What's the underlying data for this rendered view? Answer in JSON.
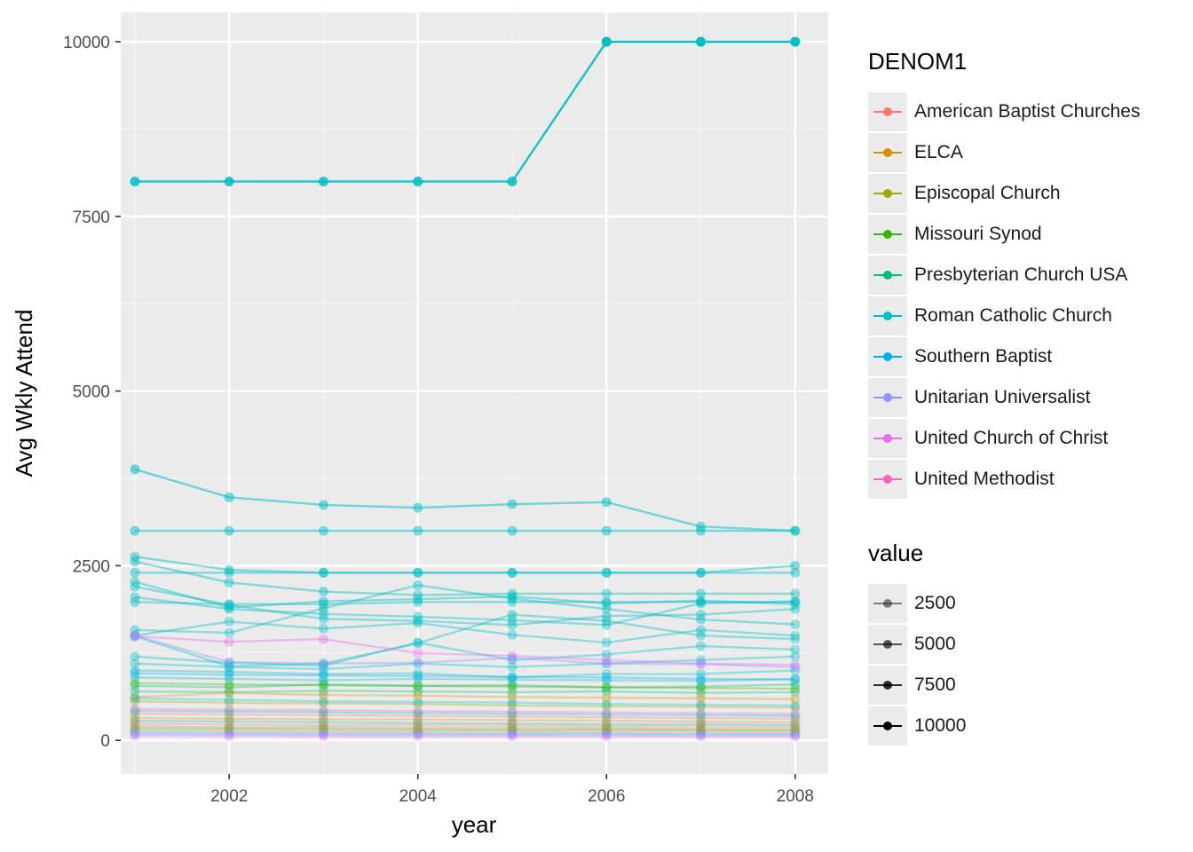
{
  "chart_data": {
    "type": "line",
    "xlabel": "year",
    "ylabel": "Avg Wkly Attend",
    "xlim": [
      2000.85,
      2008.35
    ],
    "ylim": [
      -480,
      10420
    ],
    "x_ticks": [
      2002,
      2004,
      2006,
      2008
    ],
    "x_tick_labels": [
      "2002",
      "2004",
      "2006",
      "2008"
    ],
    "y_ticks": [
      0,
      2500,
      5000,
      7500,
      10000
    ],
    "y_tick_labels": [
      "0",
      "2500",
      "5000",
      "7500",
      "10000"
    ],
    "grid": true,
    "x": [
      2001,
      2002,
      2003,
      2004,
      2005,
      2006,
      2007,
      2008
    ],
    "color_legend": {
      "title": "DENOM1",
      "placement": "right",
      "entries": [
        {
          "name": "American Baptist Churches",
          "color": "#F8766D"
        },
        {
          "name": "ELCA",
          "color": "#D89000"
        },
        {
          "name": "Episcopal Church",
          "color": "#A3A500"
        },
        {
          "name": "Missouri Synod",
          "color": "#39B600"
        },
        {
          "name": "Presbyterian Church USA",
          "color": "#00BF7D"
        },
        {
          "name": "Roman Catholic Church",
          "color": "#00BFC4"
        },
        {
          "name": "Southern Baptist",
          "color": "#00B0F6"
        },
        {
          "name": "Unitarian Universalist",
          "color": "#9590FF"
        },
        {
          "name": "United Church of Christ",
          "color": "#E76BF3"
        },
        {
          "name": "United Methodist",
          "color": "#FF62BC"
        }
      ]
    },
    "alpha_legend": {
      "title": "value",
      "placement": "right",
      "entries": [
        {
          "label": "2500",
          "value": 2500
        },
        {
          "label": "5000",
          "value": 5000
        },
        {
          "label": "7500",
          "value": 7500
        },
        {
          "label": "10000",
          "value": 10000
        }
      ]
    },
    "series": [
      {
        "denom": "Roman Catholic Church",
        "values": [
          8000,
          8000,
          8000,
          8000,
          8000,
          10000,
          10000,
          10000
        ]
      },
      {
        "denom": "Roman Catholic Church",
        "values": [
          3880,
          3480,
          3370,
          3330,
          3380,
          3410,
          3060,
          3000
        ]
      },
      {
        "denom": "Roman Catholic Church",
        "values": [
          3000,
          3000,
          3000,
          3000,
          3000,
          3000,
          3000,
          3000
        ]
      },
      {
        "denom": "Roman Catholic Church",
        "values": [
          2630,
          2440,
          2400,
          2400,
          2400,
          2400,
          2400,
          2500
        ]
      },
      {
        "denom": "Roman Catholic Church",
        "values": [
          2400,
          2400,
          2400,
          2400,
          2400,
          2400,
          2400,
          2400
        ]
      },
      {
        "denom": "Roman Catholic Church",
        "values": [
          2560,
          2260,
          2130,
          2080,
          2100,
          2100,
          2100,
          2100
        ]
      },
      {
        "denom": "Roman Catholic Church",
        "values": [
          2270,
          1900,
          1990,
          2020,
          2060,
          1960,
          2000,
          1950
        ]
      },
      {
        "denom": "Roman Catholic Church",
        "values": [
          2200,
          1940,
          1740,
          1710,
          1650,
          1780,
          1800,
          1880
        ]
      },
      {
        "denom": "Roman Catholic Church",
        "values": [
          2050,
          1880,
          1810,
          1770,
          1720,
          1650,
          1960,
          1990
        ]
      },
      {
        "denom": "Roman Catholic Church",
        "values": [
          1980,
          1950,
          1950,
          1980,
          1980,
          1980,
          1980,
          1980
        ]
      },
      {
        "denom": "Roman Catholic Church",
        "values": [
          1580,
          1540,
          1890,
          2220,
          2030,
          1880,
          1730,
          1660
        ]
      },
      {
        "denom": "Roman Catholic Church",
        "values": [
          1500,
          1700,
          1600,
          1680,
          1510,
          1400,
          1580,
          1500
        ]
      },
      {
        "denom": "Roman Catholic Church",
        "values": [
          1490,
          1060,
          1100,
          1390,
          1800,
          1710,
          1500,
          1450
        ]
      },
      {
        "denom": "Roman Catholic Church",
        "values": [
          1200,
          1110,
          1070,
          1400,
          1150,
          1230,
          1350,
          1300
        ]
      },
      {
        "denom": "Roman Catholic Church",
        "values": [
          1100,
          1050,
          1020,
          1100,
          1050,
          1100,
          1150,
          1200
        ]
      },
      {
        "denom": "Roman Catholic Church",
        "values": [
          1000,
          980,
          950,
          960,
          900,
          950,
          950,
          1000
        ]
      },
      {
        "denom": "Roman Catholic Church",
        "values": [
          900,
          880,
          860,
          880,
          870,
          860,
          850,
          880
        ]
      },
      {
        "denom": "Presbyterian Church USA",
        "values": [
          780,
          760,
          800,
          780,
          790,
          760,
          770,
          800
        ]
      },
      {
        "denom": "Presbyterian Church USA",
        "values": [
          700,
          690,
          710,
          700,
          690,
          700,
          680,
          690
        ]
      },
      {
        "denom": "United Church of Christ",
        "values": [
          1490,
          1410,
          1450,
          1250,
          1210,
          1150,
          1100,
          1080
        ]
      },
      {
        "denom": "Unitarian Universalist",
        "values": [
          1500,
          1120,
          1100,
          1110,
          1180,
          1100,
          1090,
          1050
        ]
      },
      {
        "denom": "Southern Baptist",
        "values": [
          960,
          940,
          930,
          920,
          910,
          900,
          880,
          870
        ]
      },
      {
        "denom": "Missouri Synod",
        "values": [
          820,
          800,
          790,
          780,
          770,
          760,
          750,
          740
        ]
      },
      {
        "denom": "ELCA",
        "values": [
          620,
          680,
          650,
          640,
          620,
          610,
          600,
          590
        ]
      },
      {
        "denom": "Episcopal Church",
        "values": [
          560,
          540,
          530,
          520,
          500,
          490,
          480,
          470
        ]
      },
      {
        "denom": "United Methodist",
        "values": [
          450,
          440,
          430,
          420,
          410,
          400,
          390,
          380
        ]
      },
      {
        "denom": "American Baptist Churches",
        "values": [
          380,
          370,
          360,
          350,
          340,
          330,
          320,
          310
        ]
      },
      {
        "denom": "ELCA",
        "values": [
          320,
          310,
          300,
          300,
          290,
          280,
          270,
          260
        ]
      },
      {
        "denom": "Presbyterian Church USA",
        "values": [
          280,
          270,
          260,
          250,
          240,
          230,
          230,
          220
        ]
      },
      {
        "denom": "United Methodist",
        "values": [
          240,
          230,
          220,
          220,
          210,
          200,
          200,
          190
        ]
      },
      {
        "denom": "Episcopal Church",
        "values": [
          200,
          190,
          190,
          180,
          175,
          170,
          165,
          160
        ]
      },
      {
        "denom": "Missouri Synod",
        "values": [
          170,
          165,
          160,
          155,
          150,
          150,
          145,
          140
        ]
      },
      {
        "denom": "American Baptist Churches",
        "values": [
          140,
          135,
          130,
          128,
          125,
          120,
          118,
          115
        ]
      },
      {
        "denom": "Southern Baptist",
        "values": [
          110,
          105,
          100,
          100,
          98,
          95,
          92,
          90
        ]
      },
      {
        "denom": "Unitarian Universalist",
        "values": [
          85,
          82,
          80,
          78,
          76,
          75,
          72,
          70
        ]
      },
      {
        "denom": "United Church of Christ",
        "values": [
          65,
          62,
          60,
          60,
          58,
          57,
          55,
          55
        ]
      },
      {
        "denom": "Roman Catholic Church",
        "values": [
          600,
          580,
          560,
          550,
          540,
          520,
          510,
          500
        ]
      },
      {
        "denom": "Roman Catholic Church",
        "values": [
          420,
          410,
          400,
          390,
          380,
          370,
          360,
          350
        ]
      }
    ]
  }
}
